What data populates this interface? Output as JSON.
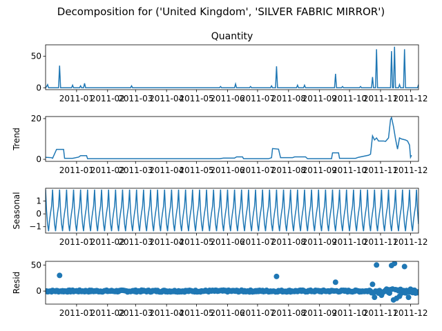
{
  "chart_data": {
    "type": "line",
    "title": "Decomposition for ('United Kingdom', 'SILVER FABRIC MIRROR')",
    "x_tick_labels": [
      "2011-01",
      "2011-02",
      "2011-03",
      "2011-04",
      "2011-05",
      "2011-06",
      "2011-07",
      "2011-08",
      "2011-09",
      "2011-10",
      "2011-11",
      "2011-12"
    ],
    "x_tick_dates": [
      "2011-01-01",
      "2011-02-01",
      "2011-03-01",
      "2011-04-01",
      "2011-05-01",
      "2011-06-01",
      "2011-07-01",
      "2011-08-01",
      "2011-09-01",
      "2011-10-01",
      "2011-11-01",
      "2011-12-01"
    ],
    "x_range": [
      "2010-12-01",
      "2011-12-09"
    ],
    "color": "#1f77b4",
    "panels": [
      {
        "name": "observed",
        "title": "Quantity",
        "ylabel": "",
        "type": "line",
        "ylim": [
          -3,
          68
        ],
        "yticks": [
          0,
          50
        ],
        "baseline": 0,
        "spikes": [
          {
            "x": "2010-12-02",
            "y": 2
          },
          {
            "x": "2010-12-03",
            "y": 5
          },
          {
            "x": "2010-12-15",
            "y": 35
          },
          {
            "x": "2010-12-28",
            "y": 4
          },
          {
            "x": "2011-01-05",
            "y": 3
          },
          {
            "x": "2011-01-09",
            "y": 7
          },
          {
            "x": "2011-02-25",
            "y": 3
          },
          {
            "x": "2011-05-25",
            "y": 2
          },
          {
            "x": "2011-06-09",
            "y": 6
          },
          {
            "x": "2011-06-24",
            "y": 2
          },
          {
            "x": "2011-07-15",
            "y": 3
          },
          {
            "x": "2011-07-20",
            "y": 34
          },
          {
            "x": "2011-08-10",
            "y": 4
          },
          {
            "x": "2011-08-17",
            "y": 4
          },
          {
            "x": "2011-09-17",
            "y": 22
          },
          {
            "x": "2011-09-24",
            "y": 2
          },
          {
            "x": "2011-10-12",
            "y": 2
          },
          {
            "x": "2011-10-24",
            "y": 17
          },
          {
            "x": "2011-10-28",
            "y": 61
          },
          {
            "x": "2011-11-12",
            "y": 58
          },
          {
            "x": "2011-11-15",
            "y": 65
          },
          {
            "x": "2011-11-20",
            "y": 5
          },
          {
            "x": "2011-11-25",
            "y": 61
          },
          {
            "x": "2011-12-09",
            "y": 5
          }
        ]
      },
      {
        "name": "trend",
        "title": "",
        "ylabel": "Trend",
        "type": "line",
        "ylim": [
          -1,
          21
        ],
        "yticks": [
          0,
          20
        ],
        "points": [
          [
            "2010-12-01",
            1
          ],
          [
            "2010-12-07",
            0.8
          ],
          [
            "2010-12-08",
            0.5
          ],
          [
            "2010-12-12",
            4.9
          ],
          [
            "2010-12-19",
            4.9
          ],
          [
            "2010-12-20",
            0.5
          ],
          [
            "2010-12-28",
            0.5
          ],
          [
            "2011-01-03",
            1.1
          ],
          [
            "2011-01-05",
            1.8
          ],
          [
            "2011-01-11",
            1.8
          ],
          [
            "2011-01-12",
            0.3
          ],
          [
            "2011-05-24",
            0.3
          ],
          [
            "2011-05-28",
            0.6
          ],
          [
            "2011-06-08",
            0.6
          ],
          [
            "2011-06-10",
            1.2
          ],
          [
            "2011-06-16",
            1.2
          ],
          [
            "2011-06-17",
            0.3
          ],
          [
            "2011-07-12",
            0.3
          ],
          [
            "2011-07-15",
            0.8
          ],
          [
            "2011-07-16",
            5.3
          ],
          [
            "2011-07-22",
            5.0
          ],
          [
            "2011-07-24",
            0.8
          ],
          [
            "2011-08-05",
            0.8
          ],
          [
            "2011-08-07",
            1.2
          ],
          [
            "2011-08-18",
            1.2
          ],
          [
            "2011-08-20",
            0.3
          ],
          [
            "2011-09-13",
            0.3
          ],
          [
            "2011-09-14",
            3.2
          ],
          [
            "2011-09-20",
            3.2
          ],
          [
            "2011-09-21",
            0.5
          ],
          [
            "2011-10-07",
            0.5
          ],
          [
            "2011-10-10",
            1.0
          ],
          [
            "2011-10-20",
            2.0
          ],
          [
            "2011-10-22",
            2.5
          ],
          [
            "2011-10-24",
            11.5
          ],
          [
            "2011-10-26",
            9.5
          ],
          [
            "2011-10-28",
            10.5
          ],
          [
            "2011-10-30",
            9.0
          ],
          [
            "2011-11-04",
            9.0
          ],
          [
            "2011-11-06",
            8.8
          ],
          [
            "2011-11-09",
            10.5
          ],
          [
            "2011-11-11",
            19.5
          ],
          [
            "2011-11-12",
            20.5
          ],
          [
            "2011-11-14",
            16
          ],
          [
            "2011-11-16",
            10
          ],
          [
            "2011-11-18",
            5.0
          ],
          [
            "2011-11-20",
            10.5
          ],
          [
            "2011-11-22",
            10.0
          ],
          [
            "2011-11-26",
            9.5
          ],
          [
            "2011-11-28",
            9.0
          ],
          [
            "2011-11-30",
            7.0
          ],
          [
            "2011-12-01",
            1.0
          ],
          [
            "2011-12-02",
            2.0
          ]
        ]
      },
      {
        "name": "seasonal",
        "title": "",
        "ylabel": "Seasonal",
        "type": "line",
        "ylim": [
          -1.5,
          2.0
        ],
        "yticks": [
          -1,
          0,
          1
        ],
        "pattern": [
          1.9,
          0.2,
          -0.8,
          -1.35,
          -0.5,
          0.1,
          0.6
        ],
        "period_days": 7,
        "start": "2010-12-01",
        "end": "2011-12-09"
      },
      {
        "name": "resid",
        "title": "",
        "ylabel": "Resid",
        "type": "scatter",
        "ylim": [
          -25,
          57
        ],
        "yticks": [
          0,
          50
        ],
        "outliers": [
          {
            "x": "2010-12-15",
            "y": 30
          },
          {
            "x": "2011-07-20",
            "y": 28
          },
          {
            "x": "2011-09-17",
            "y": 17
          },
          {
            "x": "2011-10-24",
            "y": 13
          },
          {
            "x": "2011-10-28",
            "y": 50
          },
          {
            "x": "2011-11-12",
            "y": 49
          },
          {
            "x": "2011-11-15",
            "y": 53
          },
          {
            "x": "2011-11-25",
            "y": 47
          },
          {
            "x": "2011-10-26",
            "y": -12
          },
          {
            "x": "2011-11-02",
            "y": -8
          },
          {
            "x": "2011-11-14",
            "y": -17
          },
          {
            "x": "2011-11-17",
            "y": -14
          },
          {
            "x": "2011-11-20",
            "y": -10
          },
          {
            "x": "2011-11-29",
            "y": -12
          }
        ]
      }
    ]
  }
}
